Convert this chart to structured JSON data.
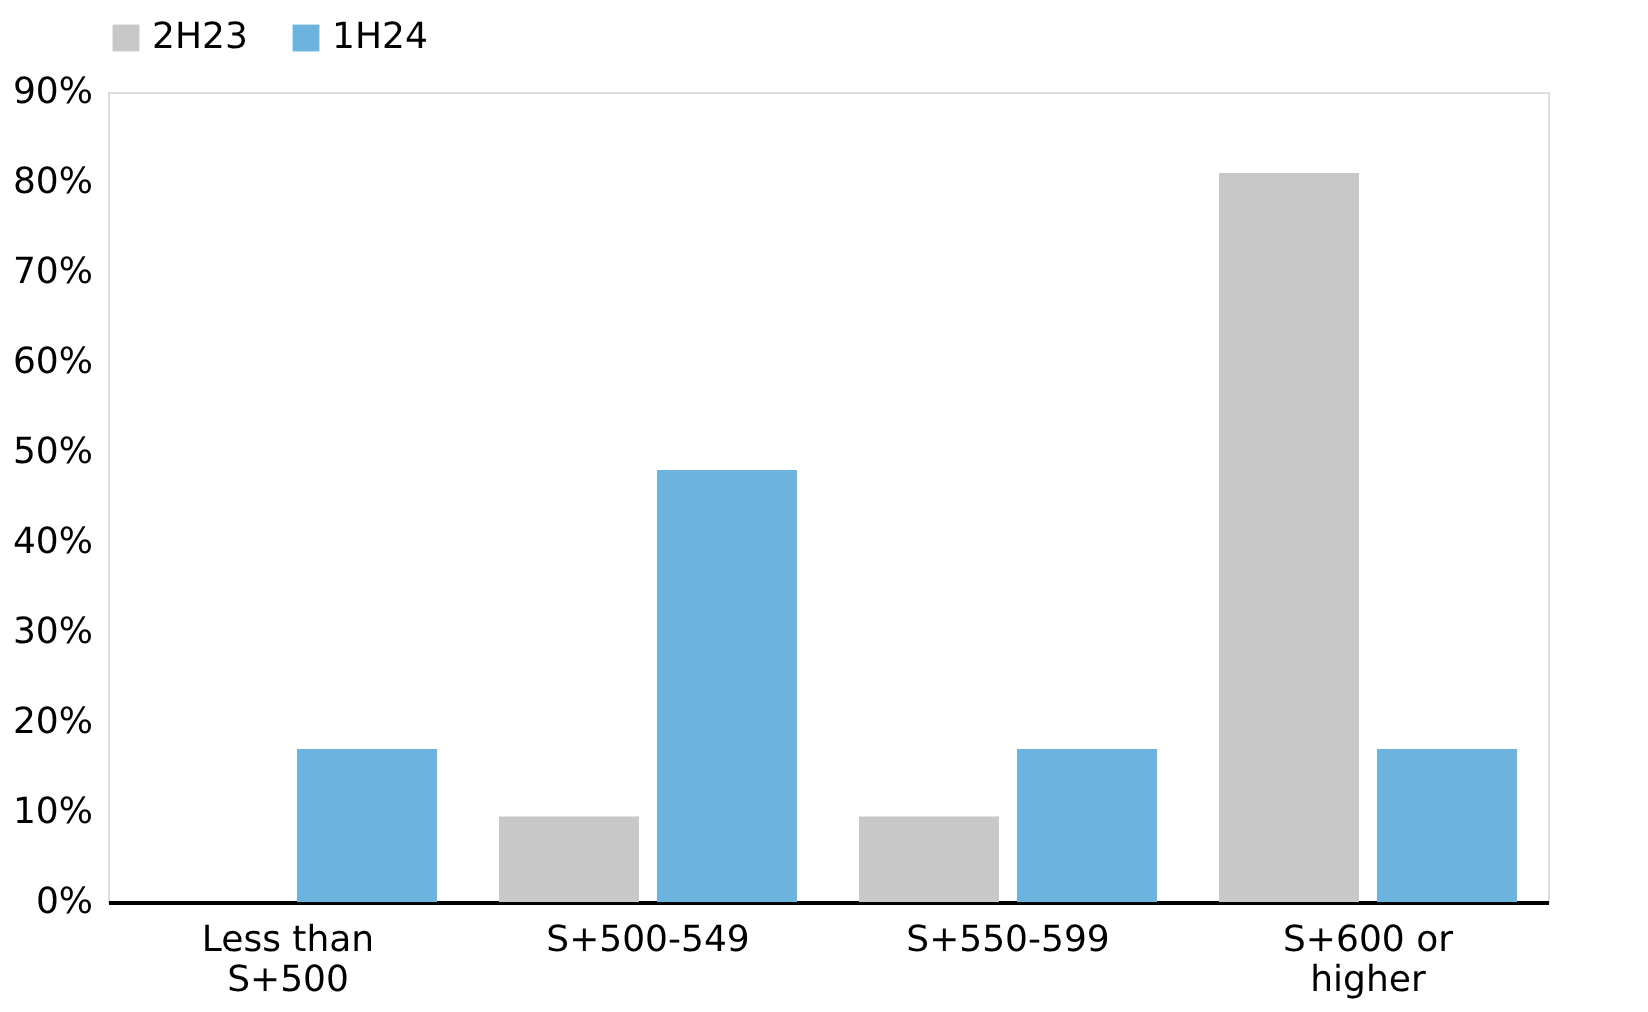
{
  "chart_data": {
    "type": "bar",
    "categories": [
      "Less than S+500",
      "S+500-549",
      "S+550-599",
      "S+600 or higher"
    ],
    "series": [
      {
        "name": "2H23",
        "color": "#c8c8c8",
        "values": [
          0,
          9.5,
          9.5,
          81
        ]
      },
      {
        "name": "1H24",
        "color": "#6cb4de",
        "values": [
          17,
          48,
          17,
          17
        ]
      }
    ],
    "ylim": [
      0,
      90
    ],
    "yticks": [
      {
        "value": 0,
        "label": "0%"
      },
      {
        "value": 10,
        "label": "10%"
      },
      {
        "value": 20,
        "label": "20%"
      },
      {
        "value": 30,
        "label": "30%"
      },
      {
        "value": 40,
        "label": "40%"
      },
      {
        "value": 50,
        "label": "50%"
      },
      {
        "value": 60,
        "label": "60%"
      },
      {
        "value": 70,
        "label": "70%"
      },
      {
        "value": 80,
        "label": "80%"
      },
      {
        "value": 90,
        "label": "90%"
      }
    ],
    "grid": false,
    "legend": "top"
  }
}
